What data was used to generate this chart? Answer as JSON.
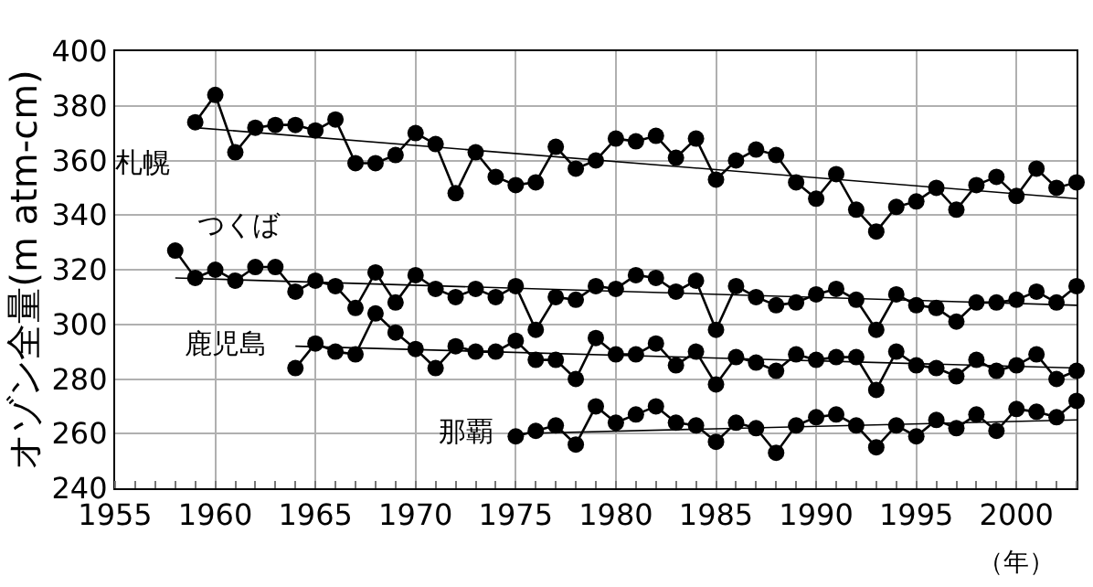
{
  "chart_data": {
    "type": "line",
    "ylabel": "オゾン全量(m atm-cm)",
    "xlabel": "（年）",
    "xlim": [
      1955,
      2003
    ],
    "xticks": [
      1955,
      1960,
      1965,
      1970,
      1975,
      1980,
      1985,
      1990,
      1995,
      2000
    ],
    "ylim": [
      240,
      400
    ],
    "yticks": [
      240,
      260,
      280,
      300,
      320,
      340,
      360,
      380,
      400
    ],
    "grid": true,
    "legend": false,
    "marker": "circle",
    "line_style": "solid",
    "series": [
      {
        "name": "札幌",
        "color": "#000000",
        "x": [
          1959,
          1960,
          1961,
          1962,
          1963,
          1964,
          1965,
          1966,
          1967,
          1968,
          1969,
          1970,
          1971,
          1972,
          1973,
          1974,
          1975,
          1976,
          1977,
          1978,
          1979,
          1980,
          1981,
          1982,
          1983,
          1984,
          1985,
          1986,
          1987,
          1988,
          1989,
          1990,
          1991,
          1992,
          1993,
          1994,
          1995,
          1996,
          1997,
          1998,
          1999,
          2000,
          2001,
          2002,
          2003
        ],
        "values": [
          374,
          384,
          363,
          372,
          373,
          373,
          371,
          375,
          359,
          359,
          362,
          370,
          366,
          348,
          363,
          354,
          351,
          352,
          365,
          357,
          360,
          368,
          367,
          369,
          361,
          368,
          353,
          360,
          364,
          362,
          352,
          346,
          355,
          342,
          334,
          343,
          345,
          350,
          342,
          351,
          354,
          347,
          357,
          350,
          352
        ]
      },
      {
        "name": "つくば",
        "color": "#000000",
        "x": [
          1958,
          1959,
          1960,
          1961,
          1962,
          1963,
          1964,
          1965,
          1966,
          1967,
          1968,
          1969,
          1970,
          1971,
          1972,
          1973,
          1974,
          1975,
          1976,
          1977,
          1978,
          1979,
          1980,
          1981,
          1982,
          1983,
          1984,
          1985,
          1986,
          1987,
          1988,
          1989,
          1990,
          1991,
          1992,
          1993,
          1994,
          1995,
          1996,
          1997,
          1998,
          1999,
          2000,
          2001,
          2002,
          2003
        ],
        "values": [
          327,
          317,
          320,
          316,
          321,
          321,
          312,
          316,
          314,
          306,
          319,
          308,
          318,
          313,
          310,
          313,
          310,
          314,
          298,
          310,
          309,
          314,
          313,
          318,
          317,
          312,
          316,
          298,
          314,
          310,
          307,
          308,
          311,
          313,
          309,
          298,
          311,
          307,
          306,
          301,
          308,
          308,
          309,
          312,
          308,
          314
        ]
      },
      {
        "name": "鹿児島",
        "color": "#000000",
        "x": [
          1964,
          1965,
          1966,
          1967,
          1968,
          1969,
          1970,
          1971,
          1972,
          1973,
          1974,
          1975,
          1976,
          1977,
          1978,
          1979,
          1980,
          1981,
          1982,
          1983,
          1984,
          1985,
          1986,
          1987,
          1988,
          1989,
          1990,
          1991,
          1992,
          1993,
          1994,
          1995,
          1996,
          1997,
          1998,
          1999,
          2000,
          2001,
          2002,
          2003
        ],
        "values": [
          284,
          293,
          290,
          289,
          304,
          297,
          291,
          284,
          292,
          290,
          290,
          294,
          287,
          287,
          280,
          295,
          289,
          289,
          293,
          285,
          290,
          278,
          288,
          286,
          283,
          289,
          287,
          288,
          288,
          276,
          290,
          285,
          284,
          281,
          287,
          283,
          285,
          289,
          280,
          283
        ]
      },
      {
        "name": "那覇",
        "color": "#000000",
        "x": [
          1975,
          1976,
          1977,
          1978,
          1979,
          1980,
          1981,
          1982,
          1983,
          1984,
          1985,
          1986,
          1987,
          1988,
          1989,
          1990,
          1991,
          1992,
          1993,
          1994,
          1995,
          1996,
          1997,
          1998,
          1999,
          2000,
          2001,
          2002,
          2003
        ],
        "values": [
          259,
          261,
          263,
          256,
          270,
          264,
          267,
          270,
          264,
          263,
          257,
          264,
          262,
          253,
          263,
          266,
          267,
          263,
          255,
          263,
          259,
          265,
          262,
          267,
          261,
          269,
          268,
          266,
          272
        ]
      },
      {
        "type": "line",
        "marker": "none",
        "color": "#000000",
        "x": [
          1959,
          2003
        ],
        "values": [
          372,
          346
        ]
      },
      {
        "type": "line",
        "marker": "none",
        "color": "#000000",
        "x": [
          1958,
          2003
        ],
        "values": [
          317,
          307
        ]
      },
      {
        "type": "line",
        "marker": "none",
        "color": "#000000",
        "x": [
          1964,
          2003
        ],
        "values": [
          292,
          284
        ]
      },
      {
        "type": "line",
        "marker": "none",
        "color": "#000000",
        "x": [
          1975,
          2003
        ],
        "values": [
          260,
          265
        ]
      }
    ]
  }
}
